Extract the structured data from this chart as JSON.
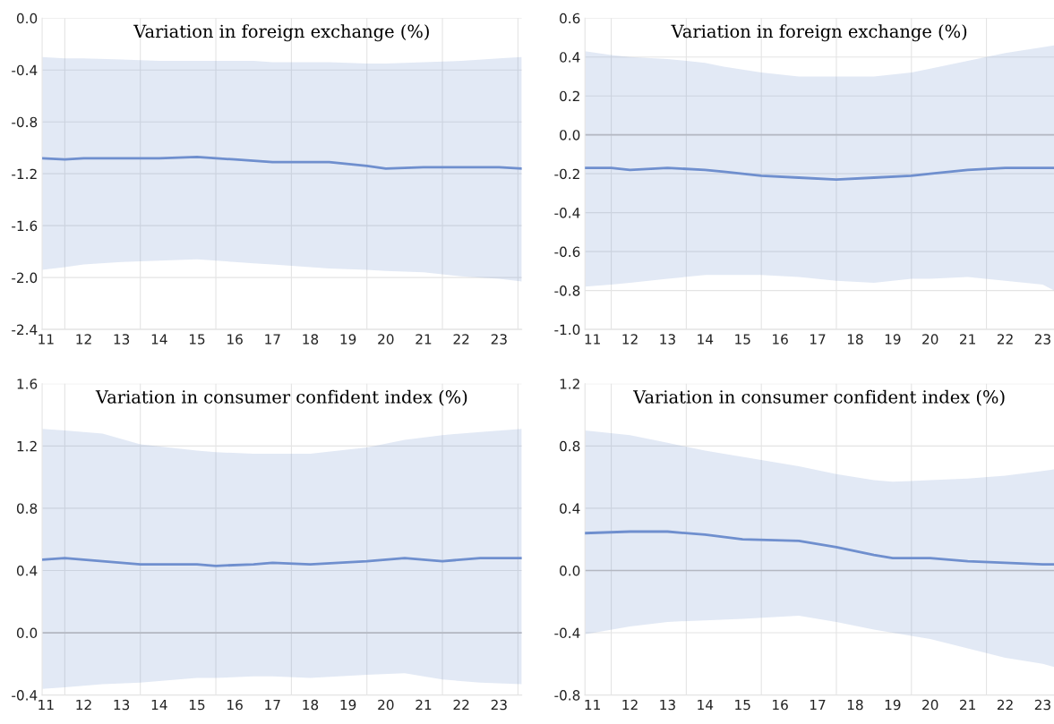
{
  "chart_data": [
    {
      "type": "line",
      "title": "Variation in foreign exchange (%)",
      "xlim": [
        10.9,
        23.6
      ],
      "ylim": [
        -2.4,
        0.0
      ],
      "xticks": [
        11,
        {
          "value": 11.5,
          "label": null
        },
        12,
        13,
        {
          "value": 13.5,
          "label": null
        },
        14,
        15,
        {
          "value": 15.5,
          "label": null
        },
        16,
        17,
        {
          "value": 17.5,
          "label": null
        },
        18,
        19,
        {
          "value": 19.5,
          "label": null
        },
        20,
        21,
        {
          "value": 21.5,
          "label": null
        },
        22,
        23,
        {
          "value": 23.5,
          "label": null
        }
      ],
      "yticks": [
        {
          "value": 0,
          "label": "0.0"
        },
        -0.4,
        -0.8,
        -1.2,
        -1.6,
        {
          "value": -2,
          "label": "-2.0"
        },
        -2.4
      ],
      "grid": true,
      "series": [
        {
          "color": "#6f8fce",
          "x": [
            10.9,
            11.5,
            12,
            13,
            14,
            15,
            16,
            16.5,
            17,
            18,
            18.5,
            19.5,
            20,
            21,
            22,
            23,
            23.6
          ],
          "values": [
            -1.08,
            -1.09,
            -1.08,
            -1.08,
            -1.08,
            -1.07,
            -1.09,
            -1.1,
            -1.11,
            -1.11,
            -1.11,
            -1.14,
            -1.16,
            -1.15,
            -1.15,
            -1.15,
            -1.16
          ],
          "lower": [
            -1.94,
            -1.92,
            -1.9,
            -1.88,
            -1.87,
            -1.86,
            -1.88,
            -1.89,
            -1.9,
            -1.92,
            -1.93,
            -1.94,
            -1.95,
            -1.96,
            -1.99,
            -2.01,
            -2.03
          ],
          "upper": [
            -0.3,
            -0.31,
            -0.31,
            -0.32,
            -0.33,
            -0.33,
            -0.33,
            -0.33,
            -0.34,
            -0.34,
            -0.34,
            -0.35,
            -0.35,
            -0.34,
            -0.33,
            -0.31,
            -0.3
          ]
        }
      ]
    },
    {
      "type": "line",
      "title": "Variation in foreign exchange (%)",
      "xlim": [
        10.8,
        23.3
      ],
      "ylim": [
        -1.0,
        0.6
      ],
      "xticks": [
        11,
        {
          "value": 11.5,
          "label": null
        },
        12,
        13,
        {
          "value": 13.5,
          "label": null
        },
        14,
        15,
        {
          "value": 15.5,
          "label": null
        },
        16,
        17,
        {
          "value": 17.5,
          "label": null
        },
        18,
        19,
        {
          "value": 19.5,
          "label": null
        },
        20,
        21,
        {
          "value": 21.5,
          "label": null
        },
        22,
        23
      ],
      "yticks": [
        0.6,
        0.4,
        0.2,
        {
          "value": 0,
          "label": "0.0"
        },
        -0.2,
        -0.4,
        -0.6,
        -0.8,
        {
          "value": -1,
          "label": "-1.0"
        }
      ],
      "grid": true,
      "ref_lines": [
        {
          "axis": "y",
          "value": 0.0,
          "color": "#b4b8c2"
        }
      ],
      "series": [
        {
          "color": "#6f8fce",
          "x": [
            10.8,
            11.5,
            12,
            13,
            14,
            14.5,
            15.5,
            16.5,
            17.5,
            18.5,
            19.5,
            20,
            21,
            22,
            23,
            23.3
          ],
          "values": [
            -0.17,
            -0.17,
            -0.18,
            -0.17,
            -0.18,
            -0.19,
            -0.21,
            -0.22,
            -0.23,
            -0.22,
            -0.21,
            -0.2,
            -0.18,
            -0.17,
            -0.17,
            -0.17
          ],
          "lower": [
            -0.78,
            -0.77,
            -0.76,
            -0.74,
            -0.72,
            -0.72,
            -0.72,
            -0.73,
            -0.75,
            -0.76,
            -0.74,
            -0.74,
            -0.73,
            -0.75,
            -0.77,
            -0.8
          ],
          "upper": [
            0.43,
            0.41,
            0.4,
            0.39,
            0.37,
            0.35,
            0.32,
            0.3,
            0.3,
            0.3,
            0.32,
            0.34,
            0.38,
            0.42,
            0.45,
            0.46
          ]
        }
      ]
    },
    {
      "type": "line",
      "title": "Variation in consumer confident index (%)",
      "xlim": [
        10.9,
        23.6
      ],
      "ylim": [
        -0.4,
        1.6
      ],
      "xticks": [
        11,
        {
          "value": 11.5,
          "label": null
        },
        12,
        13,
        {
          "value": 13.5,
          "label": null
        },
        14,
        15,
        {
          "value": 15.5,
          "label": null
        },
        16,
        17,
        {
          "value": 17.5,
          "label": null
        },
        18,
        19,
        {
          "value": 19.5,
          "label": null
        },
        20,
        21,
        {
          "value": 21.5,
          "label": null
        },
        22,
        23,
        {
          "value": 23.5,
          "label": null
        }
      ],
      "yticks": [
        1.6,
        1.2,
        0.8,
        0.4,
        {
          "value": 0,
          "label": "0.0"
        },
        -0.4
      ],
      "grid": true,
      "ref_lines": [
        {
          "axis": "y",
          "value": 0.0,
          "color": "#b4b8c2"
        }
      ],
      "series": [
        {
          "color": "#6f8fce",
          "x": [
            10.9,
            11.5,
            12.5,
            13.5,
            15,
            15.5,
            16.5,
            17,
            18,
            19.5,
            20.5,
            21.5,
            22.5,
            23.6
          ],
          "values": [
            0.47,
            0.48,
            0.46,
            0.44,
            0.44,
            0.43,
            0.44,
            0.45,
            0.44,
            0.46,
            0.48,
            0.46,
            0.48,
            0.48
          ],
          "lower": [
            -0.36,
            -0.35,
            -0.33,
            -0.32,
            -0.29,
            -0.29,
            -0.28,
            -0.28,
            -0.29,
            -0.27,
            -0.26,
            -0.3,
            -0.32,
            -0.33
          ],
          "upper": [
            1.31,
            1.3,
            1.28,
            1.21,
            1.17,
            1.16,
            1.15,
            1.15,
            1.15,
            1.19,
            1.24,
            1.27,
            1.29,
            1.31
          ]
        }
      ]
    },
    {
      "type": "line",
      "title": "Variation in consumer confident index (%)",
      "xlim": [
        10.8,
        23.3
      ],
      "ylim": [
        -0.8,
        1.2
      ],
      "xticks": [
        11,
        {
          "value": 11.5,
          "label": null
        },
        12,
        13,
        {
          "value": 13.5,
          "label": null
        },
        14,
        15,
        {
          "value": 15.5,
          "label": null
        },
        16,
        17,
        {
          "value": 17.5,
          "label": null
        },
        18,
        19,
        {
          "value": 19.5,
          "label": null
        },
        20,
        21,
        {
          "value": 21.5,
          "label": null
        },
        22,
        23
      ],
      "yticks": [
        1.2,
        0.8,
        0.4,
        {
          "value": 0,
          "label": "0.0"
        },
        -0.4,
        -0.8
      ],
      "grid": true,
      "ref_lines": [
        {
          "axis": "y",
          "value": 0.0,
          "color": "#b4b8c2"
        }
      ],
      "series": [
        {
          "color": "#6f8fce",
          "x": [
            10.8,
            12,
            13,
            14,
            15,
            16.5,
            17.5,
            18.5,
            19,
            20,
            21,
            22,
            23,
            23.3
          ],
          "values": [
            0.24,
            0.25,
            0.25,
            0.23,
            0.2,
            0.19,
            0.15,
            0.1,
            0.08,
            0.08,
            0.06,
            0.05,
            0.04,
            0.04
          ],
          "lower": [
            -0.41,
            -0.36,
            -0.33,
            -0.32,
            -0.31,
            -0.29,
            -0.33,
            -0.38,
            -0.4,
            -0.44,
            -0.5,
            -0.56,
            -0.6,
            -0.62
          ],
          "upper": [
            0.9,
            0.87,
            0.82,
            0.77,
            0.73,
            0.67,
            0.62,
            0.58,
            0.57,
            0.58,
            0.59,
            0.61,
            0.64,
            0.65
          ]
        }
      ]
    }
  ]
}
